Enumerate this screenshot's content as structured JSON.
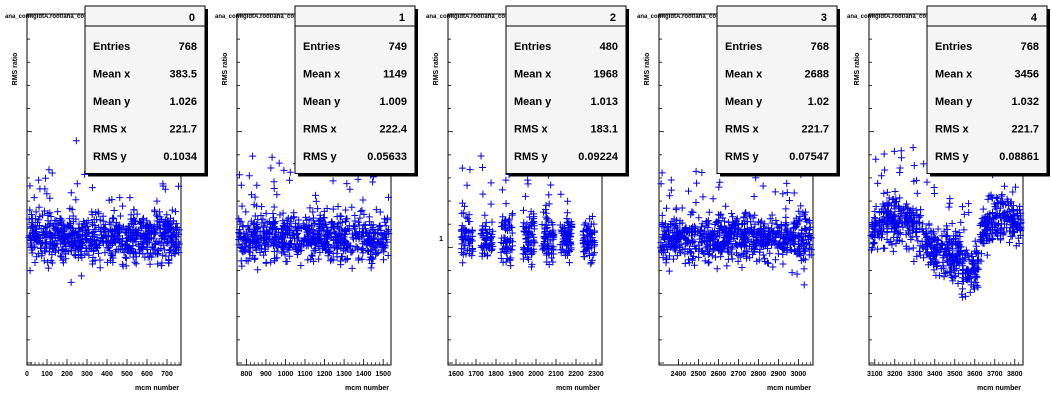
{
  "chart_data": [
    {
      "type": "scatter",
      "title": "ana_configIdtA.root/ana_configIdC.root",
      "histogram_id": "0",
      "xlabel": "mcm number",
      "ylabel": "RMS ratio",
      "xlim": [
        0,
        770
      ],
      "xticks": [
        "0",
        "100",
        "200",
        "300",
        "400",
        "500",
        "600",
        "700"
      ],
      "yticks": [],
      "stats": [
        {
          "label": "Entries",
          "value": "768"
        },
        {
          "label": "Mean x",
          "value": "383.5"
        },
        {
          "label": "Mean y",
          "value": "1.026"
        },
        {
          "label": "RMS x",
          "value": "221.7"
        },
        {
          "label": "RMS y",
          "value": "0.1034"
        }
      ]
    },
    {
      "type": "scatter",
      "title": "ana_configIdtA.root/ana_configIdC.root",
      "histogram_id": "1",
      "xlabel": "mcm number",
      "ylabel": "RMS ratio",
      "xlim": [
        752,
        1540
      ],
      "xticks": [
        "800",
        "900",
        "1000",
        "1100",
        "1200",
        "1300",
        "1400",
        "1500"
      ],
      "yticks": [],
      "stats": [
        {
          "label": "Entries",
          "value": "749"
        },
        {
          "label": "Mean x",
          "value": "1149"
        },
        {
          "label": "Mean y",
          "value": "1.009"
        },
        {
          "label": "RMS x",
          "value": "222.4"
        },
        {
          "label": "RMS y",
          "value": "0.05633"
        }
      ]
    },
    {
      "type": "scatter",
      "title": "ana_configIdtA.root/ana_configIdC.root",
      "histogram_id": "2",
      "xlabel": "mcm number",
      "ylabel": "RMS ratio",
      "xlim": [
        1560,
        2330
      ],
      "xticks": [
        "1600",
        "1700",
        "1800",
        "1900",
        "2000",
        "2100",
        "2200",
        "2300"
      ],
      "yticks": [
        "1"
      ],
      "stats": [
        {
          "label": "Entries",
          "value": "480"
        },
        {
          "label": "Mean x",
          "value": "1968"
        },
        {
          "label": "Mean y",
          "value": "1.013"
        },
        {
          "label": "RMS x",
          "value": "183.1"
        },
        {
          "label": "RMS y",
          "value": "0.09224"
        }
      ]
    },
    {
      "type": "scatter",
      "title": "ana_configIdtA.root/ana_configIdC.root",
      "histogram_id": "3",
      "xlabel": "mcm number",
      "ylabel": "RMS ratio",
      "xlim": [
        2303,
        3073
      ],
      "xticks": [
        "2400",
        "2500",
        "2600",
        "2700",
        "2800",
        "2900",
        "3000"
      ],
      "yticks": [],
      "stats": [
        {
          "label": "Entries",
          "value": "768"
        },
        {
          "label": "Mean x",
          "value": "2688"
        },
        {
          "label": "Mean y",
          "value": "1.02"
        },
        {
          "label": "RMS x",
          "value": "221.7"
        },
        {
          "label": "RMS y",
          "value": "0.07547"
        }
      ]
    },
    {
      "type": "scatter",
      "title": "ana_configIdtA.root/ana_configIdC.root",
      "histogram_id": "4",
      "xlabel": "mcm number",
      "ylabel": "RMS ratio",
      "xlim": [
        3071,
        3841
      ],
      "xticks": [
        "3100",
        "3200",
        "3300",
        "3400",
        "3500",
        "3600",
        "3700",
        "3800"
      ],
      "yticks": [],
      "stats": [
        {
          "label": "Entries",
          "value": "768"
        },
        {
          "label": "Mean x",
          "value": "3456"
        },
        {
          "label": "Mean y",
          "value": "1.032"
        },
        {
          "label": "RMS x",
          "value": "221.7"
        },
        {
          "label": "RMS y",
          "value": "0.08861"
        }
      ]
    }
  ]
}
